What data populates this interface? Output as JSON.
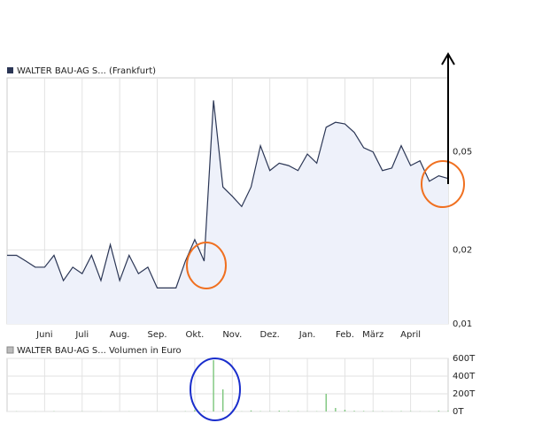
{
  "chart_data": [
    {
      "type": "line",
      "title": "WALTER BAU-AG S... (Frankfurt)",
      "categories": [
        null,
        null,
        null,
        null,
        "Juni",
        null,
        null,
        null,
        "Juli",
        null,
        null,
        null,
        "Aug.",
        null,
        null,
        null,
        "Sep.",
        null,
        null,
        null,
        "Okt.",
        null,
        null,
        null,
        "Nov.",
        null,
        null,
        null,
        "Dez.",
        null,
        null,
        null,
        "Jan.",
        null,
        null,
        null,
        "Feb.",
        null,
        null,
        "März",
        null,
        null,
        null,
        "April",
        null,
        null,
        null,
        null
      ],
      "values": [
        0.019,
        0.019,
        0.018,
        0.017,
        0.017,
        0.019,
        0.015,
        0.017,
        0.016,
        0.019,
        0.015,
        0.021,
        0.015,
        0.019,
        0.016,
        0.017,
        0.014,
        0.014,
        0.014,
        0.018,
        0.022,
        0.018,
        0.081,
        0.036,
        0.033,
        0.03,
        0.036,
        0.053,
        0.042,
        0.045,
        0.044,
        0.042,
        0.049,
        0.045,
        0.063,
        0.066,
        0.065,
        0.06,
        0.052,
        0.05,
        0.042,
        0.043,
        0.053,
        0.044,
        0.046,
        0.038,
        0.04,
        0.039
      ],
      "color": "#2b3655",
      "fill_color": "#eef1fa",
      "ylim": [
        0.01,
        0.1
      ],
      "log_scale": true,
      "yticks": [
        {
          "value": 0.01,
          "label": "0,01"
        },
        {
          "value": 0.02,
          "label": "0,02"
        },
        {
          "value": 0.05,
          "label": "0,05"
        }
      ],
      "grid": true
    },
    {
      "type": "bar",
      "title": "WALTER BAU-AG S... Volumen in Euro",
      "values": [
        0,
        2,
        0,
        1,
        0,
        3,
        0,
        0,
        2,
        0,
        1,
        0,
        0,
        2,
        0,
        0,
        1,
        0,
        0,
        3,
        15,
        8,
        580,
        250,
        5,
        2,
        12,
        4,
        3,
        10,
        6,
        4,
        2,
        3,
        200,
        40,
        20,
        8,
        6,
        4,
        3,
        2,
        5,
        4,
        2,
        1,
        10,
        6
      ],
      "color": "#7cc67c",
      "ylim": [
        0,
        600
      ],
      "yticks": [
        {
          "value": 0,
          "label": "0T"
        },
        {
          "value": 200,
          "label": "200T"
        },
        {
          "value": 400,
          "label": "400T"
        },
        {
          "value": 600,
          "label": "600T"
        }
      ],
      "grid": true
    }
  ]
}
